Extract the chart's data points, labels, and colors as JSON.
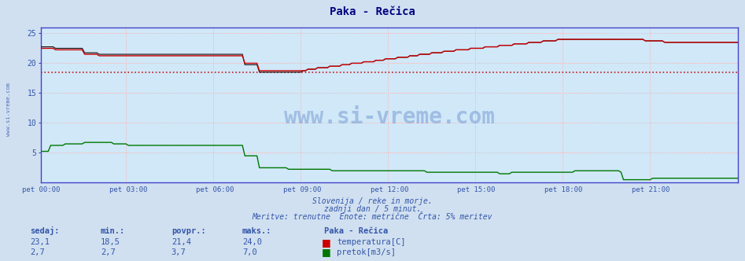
{
  "title": "Paka - Rečica",
  "bg_color": "#d0e0f0",
  "plot_bg_color": "#d0e8f8",
  "grid_color": "#ffaaaa",
  "axis_color": "#4444cc",
  "title_color": "#000080",
  "text_color": "#3355aa",
  "ylim": [
    0,
    26
  ],
  "yticks": [
    5,
    10,
    15,
    20,
    25
  ],
  "xlabel_times": [
    "pet 00:00",
    "pet 03:00",
    "pet 06:00",
    "pet 09:00",
    "pet 12:00",
    "pet 15:00",
    "pet 18:00",
    "pet 21:00"
  ],
  "avg_line_temp": 18.5,
  "temp_color": "#cc0000",
  "flow_color": "#007700",
  "black_color": "#111111",
  "watermark_text": "www.si-vreme.com",
  "subtitle1": "Slovenija / reke in morje.",
  "subtitle2": "zadnji dan / 5 minut.",
  "subtitle3": "Meritve: trenutne  Enote: metrične  Črta: 5% meritev",
  "stats_headers": [
    "sedaj:",
    "min.:",
    "povpr.:",
    "maks.:"
  ],
  "stats_temp": [
    "23,1",
    "18,5",
    "21,4",
    "24,0"
  ],
  "stats_flow": [
    "2,7",
    "2,7",
    "3,7",
    "7,0"
  ],
  "legend_title": "Paka - Rečica",
  "legend_temp": "temperatura[C]",
  "legend_flow": "pretok[m3/s]",
  "watermark_color": "#1144aa",
  "sidebar_text": "www.si-vreme.com"
}
